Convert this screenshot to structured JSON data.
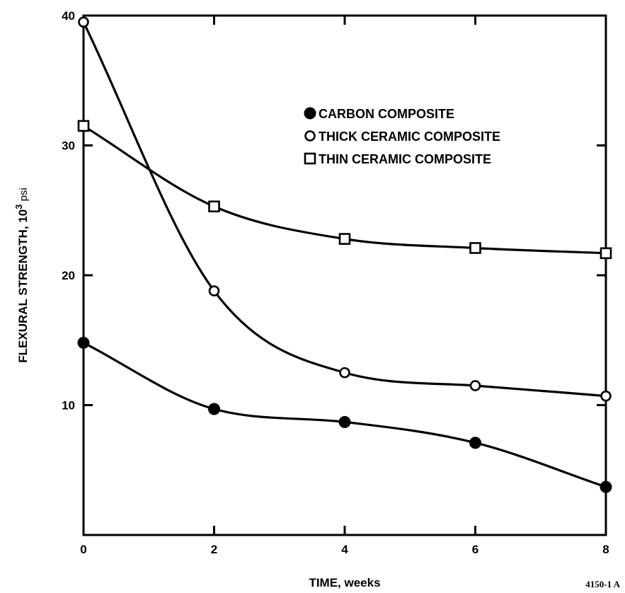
{
  "chart_data": {
    "type": "line",
    "xlabel": "TIME, weeks",
    "ylabel": "FLEXURAL STRENGTH, 10",
    "ylabel_sup": "3",
    "ylabel_unit": " psi",
    "xlim": [
      0,
      8
    ],
    "ylim": [
      0,
      40
    ],
    "x_ticks": [
      0,
      2,
      4,
      6,
      8
    ],
    "x_tick_labels": [
      "0",
      "2",
      "4",
      "6",
      "8"
    ],
    "y_ticks": [
      10,
      20,
      30,
      40
    ],
    "y_tick_labels": [
      "10",
      "20",
      "30",
      "40"
    ],
    "grid": false,
    "legend_position": "top-right",
    "series": [
      {
        "name": "CARBON COMPOSITE",
        "marker": "filled-circle",
        "x": [
          0,
          2,
          4,
          6,
          8
        ],
        "y": [
          14.8,
          9.7,
          8.7,
          7.1,
          3.7
        ]
      },
      {
        "name": "THICK CERAMIC COMPOSITE",
        "marker": "open-circle",
        "x": [
          0,
          2,
          4,
          6,
          8
        ],
        "y": [
          39.5,
          18.8,
          12.5,
          11.5,
          10.7
        ]
      },
      {
        "name": "THIN CERAMIC COMPOSITE",
        "marker": "open-square",
        "x": [
          0,
          2,
          4,
          6,
          8
        ],
        "y": [
          31.5,
          25.3,
          22.8,
          22.1,
          21.7
        ]
      }
    ],
    "figure_id": "4150-1 A"
  }
}
